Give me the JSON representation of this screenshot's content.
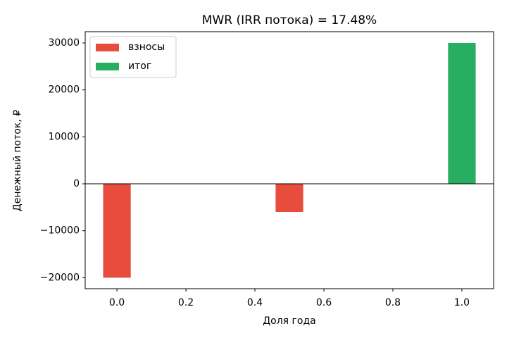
{
  "chart_data": {
    "type": "bar",
    "title": "MWR (IRR потока) = 17.48%",
    "xlabel": "Доля года",
    "ylabel": "Денежный поток, ₽",
    "series": [
      {
        "name": "взносы",
        "color": "#e74c3c",
        "x": [
          0,
          0.5
        ],
        "values": [
          -20000,
          -6000
        ]
      },
      {
        "name": "итог",
        "color": "#27ae60",
        "x": [
          1
        ],
        "values": [
          30000
        ]
      }
    ],
    "bar_width": 0.08,
    "xlim": [
      -0.092,
      1.092
    ],
    "xticks": [
      {
        "value": 0,
        "label": "0.0"
      },
      0.2,
      0.4,
      0.6,
      0.8,
      {
        "value": 1,
        "label": "1.0"
      }
    ],
    "ylim": [
      -22350,
      32400
    ],
    "yticks": [
      {
        "value": -20000,
        "label": "−20000"
      },
      {
        "value": -10000,
        "label": "−10000"
      },
      0,
      10000,
      20000,
      30000
    ],
    "grid": false,
    "legend": "upper-left"
  }
}
